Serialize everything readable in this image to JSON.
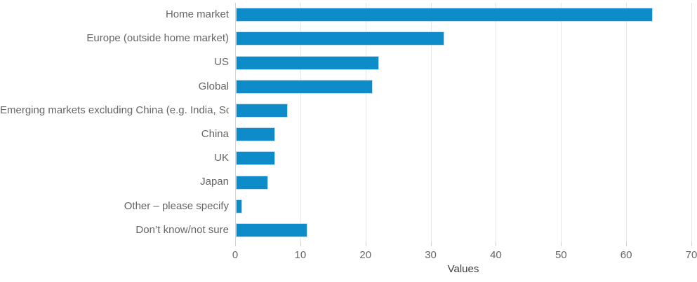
{
  "chart_data": {
    "type": "bar",
    "orientation": "horizontal",
    "title": "",
    "xlabel": "Values",
    "ylabel": "",
    "xlim": [
      0,
      70
    ],
    "xticks": [
      0,
      10,
      20,
      30,
      40,
      50,
      60,
      70
    ],
    "grid": true,
    "legend": false,
    "categories": [
      "Home market",
      "Europe (outside home market)",
      "US",
      "Global",
      "Emerging markets excluding China (e.g. India, Sou…",
      "China",
      "UK",
      "Japan",
      "Other – please specify",
      "Don’t know/not sure"
    ],
    "values": [
      64,
      32,
      22,
      21,
      8,
      6,
      6,
      5,
      1,
      11
    ],
    "colors": {
      "bar": "#0e8cc9",
      "bar_border": "#c3e0f2",
      "gridline": "#e6e6e6",
      "zero_line": "#d4d4d4",
      "tick_mark": "#cfcfcf",
      "tick_label": "#666666",
      "category_label": "#666666",
      "axis_title": "#3d3d3d",
      "background": "#ffffff"
    }
  }
}
